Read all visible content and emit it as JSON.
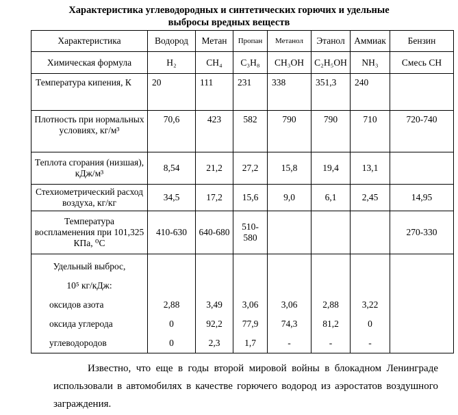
{
  "title": "Характеристика углеводородных и синтетических горючих и удельные выбросы вредных веществ",
  "table": {
    "header": [
      "Характеристика",
      "Водород",
      "Метан",
      "Пропан",
      "Метанол",
      "Этанол",
      "Аммиак",
      "Бензин"
    ],
    "rows": [
      {
        "label": "Химическая формула",
        "values": [
          "H₂",
          "CH₄",
          "C₃H₈",
          "CH₃OH",
          "C₂H₅OH",
          "NH₃",
          "Смесь CH"
        ]
      },
      {
        "label": "Температура кипения, К",
        "values": [
          "20",
          "111",
          "231",
          "338",
          "351,3",
          "240",
          ""
        ]
      },
      {
        "label": "Плотность при нормальных условиях, кг/м³",
        "values": [
          "70,6",
          "423",
          "582",
          "790",
          "790",
          "710",
          "720-740"
        ]
      },
      {
        "label": "Теплота сгорания (низшая), кДж/м³",
        "values": [
          "8,54",
          "21,2",
          "27,2",
          "15,8",
          "19,4",
          "13,1",
          ""
        ]
      },
      {
        "label": "Стехиометрический расход воздуха, кг/кг",
        "values": [
          "34,5",
          "17,2",
          "15,6",
          "9,0",
          "6,1",
          "2,45",
          "14,95"
        ]
      },
      {
        "label": "Температура воспламенения при 101,325 КПа, ⁰С",
        "values": [
          "410-630",
          "640-680",
          "510-580",
          "",
          "",
          "",
          "270-330"
        ]
      }
    ],
    "emissions": {
      "heading_line1": "Удельный выброс,",
      "heading_line2": "10⁵ кг/кДж:",
      "rows": [
        {
          "label": "оксидов азота",
          "values": [
            "2,88",
            "3,49",
            "3,06",
            "3,06",
            "2,88",
            "3,22",
            ""
          ]
        },
        {
          "label": "оксида углерода",
          "values": [
            "0",
            "92,2",
            "77,9",
            "74,3",
            "81,2",
            "0",
            ""
          ]
        },
        {
          "label": "углеводородов",
          "values": [
            "0",
            "2,3",
            "1,7",
            "-",
            "-",
            "-",
            ""
          ]
        }
      ]
    }
  },
  "footnote": "Известно, что еще в годы второй мировой войны в блокадном Ленинграде использовали в автомобилях в качестве горючего водород из аэростатов воздушного заграждения."
}
